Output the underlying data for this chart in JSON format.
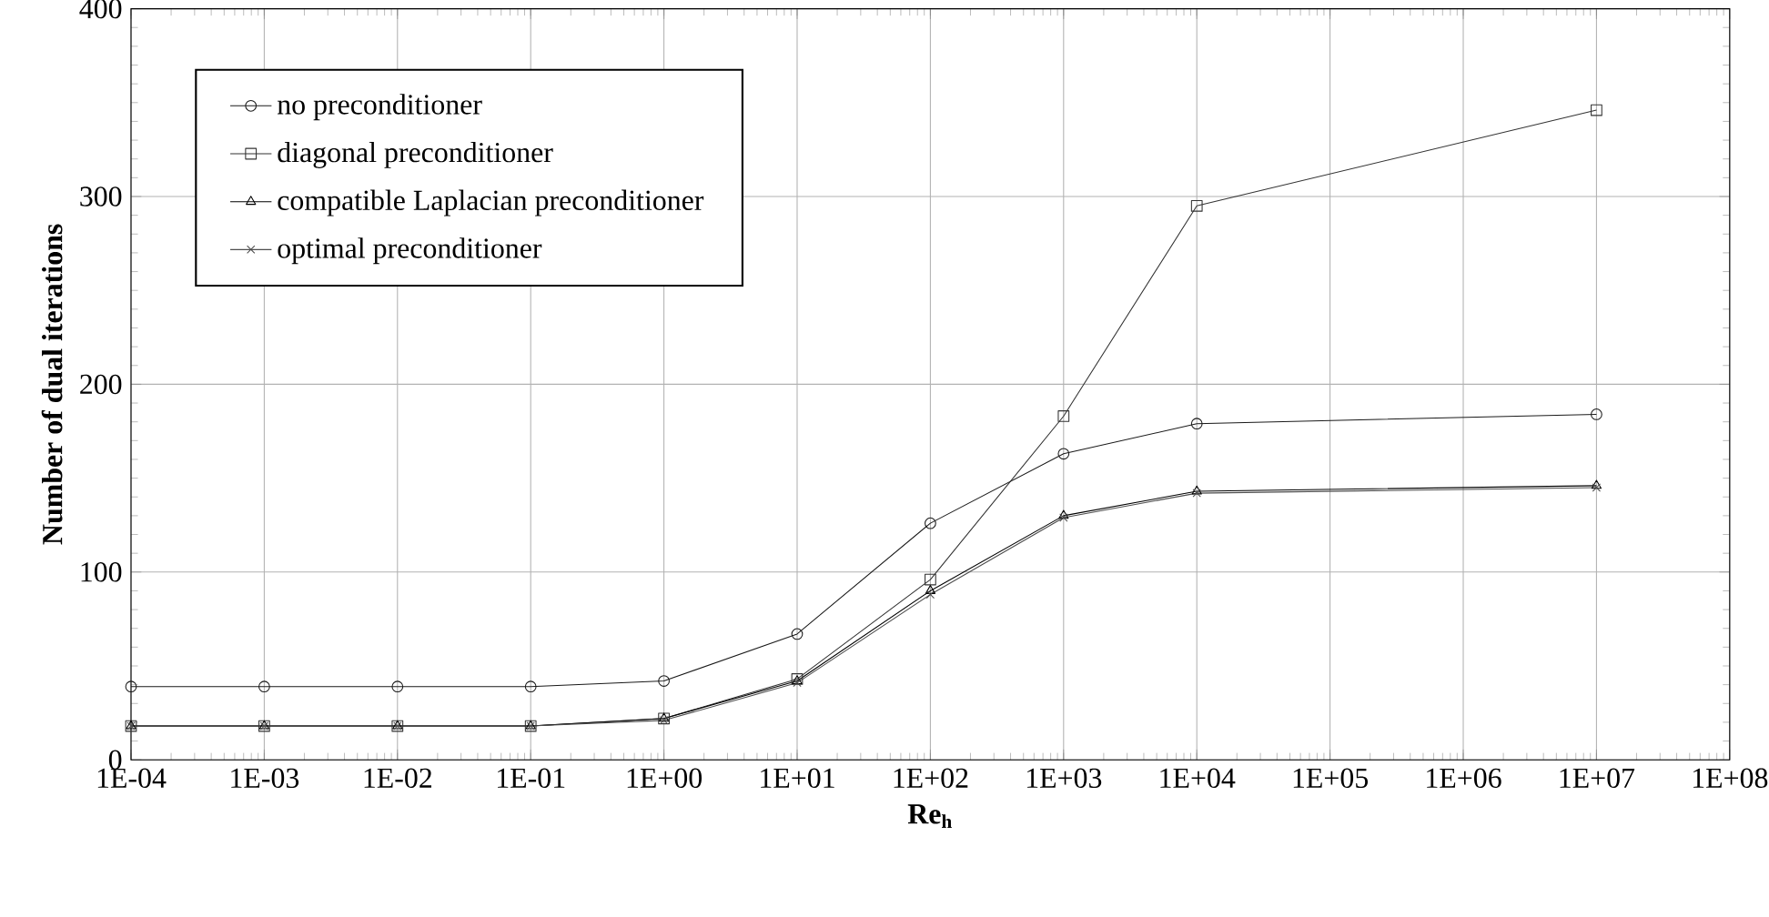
{
  "chart_data": {
    "type": "line",
    "xlabel": "**Re$_{h}$**",
    "ylabel": "Number of dual iterations",
    "x": [
      0.0001,
      0.001,
      0.01,
      0.1,
      1,
      10,
      100,
      1000,
      10000,
      10000000
    ],
    "series": [
      {
        "name": "no preconditioner",
        "color": "#1a1a1a",
        "marker": "circle",
        "values": [
          39,
          39,
          39,
          39,
          42,
          67,
          126,
          163,
          179,
          184
        ]
      },
      {
        "name": "diagonal preconditioner",
        "color": "#333333",
        "marker": "square",
        "values": [
          18,
          18,
          18,
          18,
          22,
          43,
          96,
          183,
          295,
          346
        ]
      },
      {
        "name": "compatible Laplacian preconditioner",
        "color": "#000000",
        "marker": "triangle",
        "values": [
          18,
          18,
          18,
          18,
          22,
          42,
          90,
          130,
          143,
          146
        ]
      },
      {
        "name": "optimal preconditioner",
        "color": "#4d4d4d",
        "marker": "cross",
        "values": [
          18,
          18,
          18,
          18,
          21,
          41,
          88,
          129,
          142,
          145
        ]
      }
    ],
    "log": "x",
    "xlim": [
      0.0001,
      100000000
    ],
    "ylim": [
      0,
      400
    ],
    "xticks": [
      {
        "value": 0.0001,
        "label": "1E-04"
      },
      {
        "value": 0.001,
        "label": "1E-03"
      },
      {
        "value": 0.01,
        "label": "1E-02"
      },
      {
        "value": 0.1,
        "label": "1E-01"
      },
      {
        "value": 1,
        "label": "1E+00"
      },
      {
        "value": 10,
        "label": "1E+01"
      },
      {
        "value": 100,
        "label": "1E+02"
      },
      {
        "value": 1000,
        "label": "1E+03"
      },
      {
        "value": 10000,
        "label": "1E+04"
      },
      {
        "value": 100000,
        "label": "1E+05"
      },
      {
        "value": 1000000,
        "label": "1E+06"
      },
      {
        "value": 10000000,
        "label": "1E+07"
      },
      {
        "value": 100000000,
        "label": "1E+08"
      }
    ],
    "yticks": [
      0,
      100,
      200,
      300,
      400
    ],
    "grid": true,
    "legend": "top left",
    "line_style": "solid"
  }
}
